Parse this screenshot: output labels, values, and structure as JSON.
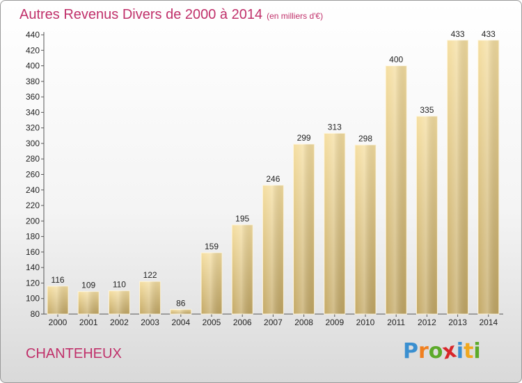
{
  "chart_data": {
    "type": "bar",
    "title": "Autres Revenus Divers de 2000 à 2014",
    "subtitle": "(en milliers d'€)",
    "categories": [
      "2000",
      "2001",
      "2002",
      "2003",
      "2004",
      "2005",
      "2006",
      "2007",
      "2008",
      "2009",
      "2010",
      "2011",
      "2012",
      "2013",
      "2014"
    ],
    "values": [
      116,
      109,
      110,
      122,
      86,
      159,
      195,
      246,
      299,
      313,
      298,
      400,
      335,
      433,
      433
    ],
    "ylim": [
      80,
      440
    ],
    "yticks": [
      80,
      100,
      120,
      140,
      160,
      180,
      200,
      220,
      240,
      260,
      280,
      300,
      320,
      340,
      360,
      380,
      400,
      420,
      440
    ],
    "grid": false,
    "bar_color": "#e6cd8a"
  },
  "location": "CHANTEHEUX",
  "logo": {
    "letters": [
      "P",
      "r",
      "o",
      "x",
      "i",
      "t",
      "i"
    ],
    "colors": [
      "#3a8fd0",
      "#f07f1f",
      "#5caa2a",
      "#d8262a",
      "#3a8fd0",
      "#f0a81f",
      "#5caa2a"
    ]
  }
}
